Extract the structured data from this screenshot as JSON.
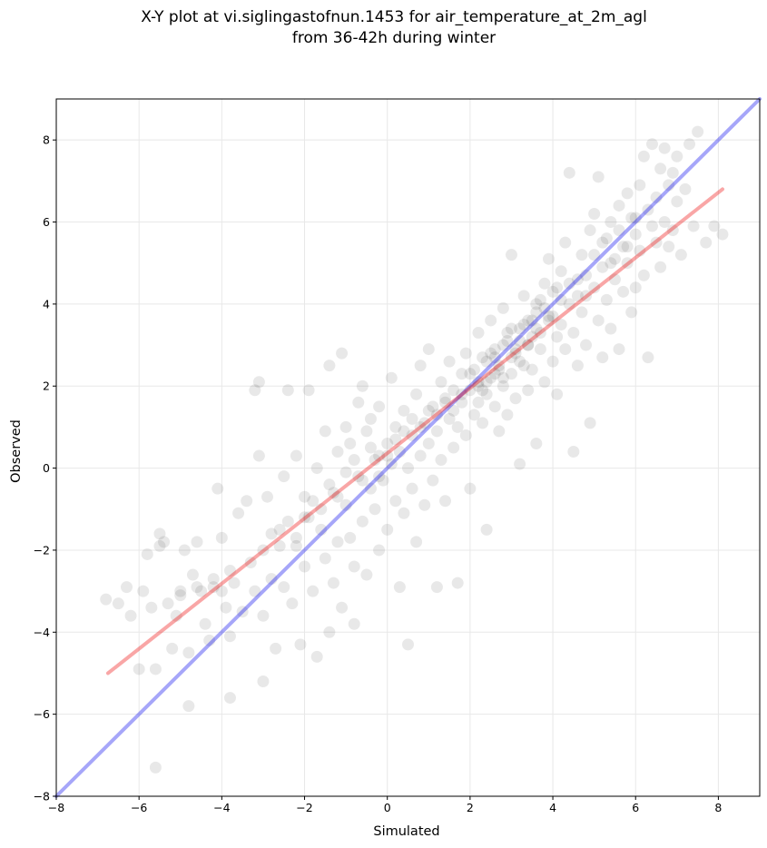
{
  "chart_data": {
    "type": "scatter",
    "title_lines": [
      "X-Y plot at vi.siglingastofnun.1453 for air_temperature_at_2m_agl",
      "from 36-42h during winter"
    ],
    "xlabel": "Simulated",
    "ylabel": "Observed",
    "xlim": [
      -8,
      9
    ],
    "ylim": [
      -8,
      9
    ],
    "xticks": [
      -8,
      -6,
      -4,
      -2,
      0,
      2,
      4,
      6,
      8
    ],
    "yticks": [
      -8,
      -6,
      -4,
      -2,
      0,
      2,
      4,
      6,
      8
    ],
    "grid": true,
    "point_color": "#000000",
    "point_alpha": 0.09,
    "identity_line": {
      "x": [
        -8,
        9
      ],
      "y": [
        -8,
        9
      ],
      "color": "#0000ee",
      "alpha": 0.35
    },
    "fit_line": {
      "x": [
        -6.75,
        8.1
      ],
      "y": [
        -5.0,
        6.8
      ],
      "color": "#ee0000",
      "alpha": 0.35
    },
    "points": [
      [
        -6.8,
        -3.2
      ],
      [
        -6.5,
        -3.3
      ],
      [
        -6.3,
        -2.9
      ],
      [
        -6.2,
        -3.6
      ],
      [
        -6.0,
        -4.9
      ],
      [
        -5.9,
        -3.0
      ],
      [
        -5.8,
        -2.1
      ],
      [
        -5.7,
        -3.4
      ],
      [
        -5.6,
        -7.3
      ],
      [
        -5.6,
        -4.9
      ],
      [
        -5.5,
        -1.9
      ],
      [
        -5.5,
        -1.6
      ],
      [
        -5.4,
        -1.8
      ],
      [
        -5.3,
        -3.3
      ],
      [
        -5.2,
        -4.4
      ],
      [
        -5.1,
        -3.6
      ],
      [
        -5.0,
        -3.1
      ],
      [
        -4.9,
        -2.0
      ],
      [
        -4.8,
        -5.8
      ],
      [
        -4.8,
        -4.5
      ],
      [
        -4.7,
        -2.6
      ],
      [
        -4.6,
        -1.8
      ],
      [
        -4.5,
        -3.0
      ],
      [
        -4.4,
        -3.8
      ],
      [
        -4.3,
        -4.2
      ],
      [
        -4.2,
        -2.9
      ],
      [
        -4.1,
        -0.5
      ],
      [
        -4.0,
        -1.7
      ],
      [
        -3.9,
        -3.4
      ],
      [
        -3.8,
        -4.1
      ],
      [
        -3.8,
        -5.6
      ],
      [
        -3.7,
        -2.8
      ],
      [
        -3.6,
        -1.1
      ],
      [
        -3.5,
        -3.5
      ],
      [
        -3.4,
        -0.8
      ],
      [
        -3.3,
        -2.3
      ],
      [
        -3.2,
        -3.0
      ],
      [
        -3.2,
        1.9
      ],
      [
        -3.1,
        2.1
      ],
      [
        -3.1,
        0.3
      ],
      [
        -3.0,
        -3.6
      ],
      [
        -3.0,
        -5.2
      ],
      [
        -2.9,
        -0.7
      ],
      [
        -2.8,
        -2.7
      ],
      [
        -2.7,
        -4.4
      ],
      [
        -2.6,
        -1.5
      ],
      [
        -2.5,
        -0.2
      ],
      [
        -2.5,
        -2.9
      ],
      [
        -2.4,
        1.9
      ],
      [
        -2.3,
        -3.3
      ],
      [
        -2.2,
        0.3
      ],
      [
        -2.2,
        -1.9
      ],
      [
        -2.1,
        -4.3
      ],
      [
        -2.0,
        -2.4
      ],
      [
        -2.0,
        -0.7
      ],
      [
        -1.9,
        1.9
      ],
      [
        -1.9,
        -1.2
      ],
      [
        -1.8,
        -3.0
      ],
      [
        -1.7,
        0.0
      ],
      [
        -1.7,
        -4.6
      ],
      [
        -1.6,
        -1.5
      ],
      [
        -1.5,
        -2.2
      ],
      [
        -1.5,
        0.9
      ],
      [
        -1.4,
        -4.0
      ],
      [
        -1.4,
        2.5
      ],
      [
        -1.3,
        -0.6
      ],
      [
        -1.3,
        -2.8
      ],
      [
        -1.2,
        0.4
      ],
      [
        -1.2,
        -1.8
      ],
      [
        -1.1,
        -3.4
      ],
      [
        -1.1,
        2.8
      ],
      [
        -1.0,
        1.0
      ],
      [
        -1.0,
        -0.9
      ],
      [
        -0.9,
        -1.7
      ],
      [
        -0.9,
        0.6
      ],
      [
        -0.8,
        -3.8
      ],
      [
        -0.8,
        -2.4
      ],
      [
        -0.7,
        1.6
      ],
      [
        -0.7,
        -0.2
      ],
      [
        -0.6,
        2.0
      ],
      [
        -0.6,
        -1.3
      ],
      [
        -0.5,
        0.9
      ],
      [
        -0.5,
        -2.6
      ],
      [
        -0.4,
        -0.5
      ],
      [
        -0.4,
        1.2
      ],
      [
        -0.3,
        -1.0
      ],
      [
        -0.3,
        0.2
      ],
      [
        -0.2,
        -2.0
      ],
      [
        -0.2,
        1.5
      ],
      [
        -0.1,
        -0.3
      ],
      [
        0.0,
        0.6
      ],
      [
        0.0,
        -1.5
      ],
      [
        0.1,
        0.1
      ],
      [
        0.1,
        2.2
      ],
      [
        0.2,
        -0.8
      ],
      [
        0.2,
        1.0
      ],
      [
        0.3,
        -2.9
      ],
      [
        0.3,
        0.4
      ],
      [
        0.4,
        -1.1
      ],
      [
        0.4,
        1.4
      ],
      [
        0.5,
        -4.3
      ],
      [
        0.5,
        0.0
      ],
      [
        0.6,
        0.8
      ],
      [
        0.6,
        -0.5
      ],
      [
        0.7,
        1.8
      ],
      [
        0.7,
        -1.8
      ],
      [
        0.8,
        0.3
      ],
      [
        0.8,
        2.5
      ],
      [
        0.9,
        -0.9
      ],
      [
        0.9,
        1.1
      ],
      [
        1.0,
        0.6
      ],
      [
        1.0,
        2.9
      ],
      [
        1.1,
        -0.3
      ],
      [
        1.1,
        1.5
      ],
      [
        1.2,
        0.9
      ],
      [
        1.2,
        -2.9
      ],
      [
        1.3,
        2.1
      ],
      [
        1.3,
        0.2
      ],
      [
        1.4,
        1.7
      ],
      [
        1.4,
        -0.8
      ],
      [
        1.5,
        1.2
      ],
      [
        1.5,
        2.6
      ],
      [
        1.6,
        0.5
      ],
      [
        1.6,
        1.9
      ],
      [
        1.7,
        1.0
      ],
      [
        1.7,
        -2.8
      ],
      [
        1.8,
        2.3
      ],
      [
        1.8,
        1.6
      ],
      [
        1.9,
        0.8
      ],
      [
        1.9,
        2.8
      ],
      [
        2.0,
        1.9
      ],
      [
        2.0,
        -0.5
      ],
      [
        2.1,
        2.4
      ],
      [
        2.1,
        1.3
      ],
      [
        2.2,
        3.3
      ],
      [
        2.2,
        2.0
      ],
      [
        2.3,
        1.1
      ],
      [
        2.3,
        2.7
      ],
      [
        2.4,
        -1.5
      ],
      [
        2.4,
        1.8
      ],
      [
        2.5,
        2.2
      ],
      [
        2.5,
        3.6
      ],
      [
        2.6,
        1.5
      ],
      [
        2.6,
        2.9
      ],
      [
        2.7,
        0.9
      ],
      [
        2.7,
        2.5
      ],
      [
        2.8,
        2.0
      ],
      [
        2.8,
        3.9
      ],
      [
        2.9,
        1.3
      ],
      [
        2.9,
        3.1
      ],
      [
        3.0,
        2.3
      ],
      [
        3.0,
        5.2
      ],
      [
        3.1,
        2.8
      ],
      [
        3.1,
        1.7
      ],
      [
        3.2,
        3.4
      ],
      [
        3.2,
        0.1
      ],
      [
        3.3,
        2.5
      ],
      [
        3.3,
        4.2
      ],
      [
        3.4,
        3.0
      ],
      [
        3.4,
        1.9
      ],
      [
        3.5,
        3.6
      ],
      [
        3.5,
        2.4
      ],
      [
        3.6,
        4.0
      ],
      [
        3.6,
        0.6
      ],
      [
        3.7,
        2.9
      ],
      [
        3.7,
        3.3
      ],
      [
        3.8,
        4.5
      ],
      [
        3.8,
        2.1
      ],
      [
        3.9,
        3.7
      ],
      [
        3.9,
        5.1
      ],
      [
        4.0,
        2.6
      ],
      [
        4.0,
        4.3
      ],
      [
        4.1,
        3.2
      ],
      [
        4.1,
        1.8
      ],
      [
        4.2,
        4.8
      ],
      [
        4.2,
        3.5
      ],
      [
        4.3,
        2.9
      ],
      [
        4.3,
        5.5
      ],
      [
        4.4,
        4.0
      ],
      [
        4.4,
        7.2
      ],
      [
        4.5,
        3.3
      ],
      [
        4.5,
        0.4
      ],
      [
        4.6,
        4.6
      ],
      [
        4.6,
        2.5
      ],
      [
        4.7,
        3.8
      ],
      [
        4.7,
        5.2
      ],
      [
        4.8,
        4.2
      ],
      [
        4.8,
        3.0
      ],
      [
        4.9,
        5.8
      ],
      [
        4.9,
        1.1
      ],
      [
        5.0,
        4.4
      ],
      [
        5.0,
        6.2
      ],
      [
        5.1,
        3.6
      ],
      [
        5.1,
        7.1
      ],
      [
        5.2,
        4.9
      ],
      [
        5.2,
        2.7
      ],
      [
        5.3,
        5.6
      ],
      [
        5.3,
        4.1
      ],
      [
        5.4,
        6.0
      ],
      [
        5.4,
        3.4
      ],
      [
        5.5,
        5.1
      ],
      [
        5.5,
        4.6
      ],
      [
        5.6,
        6.4
      ],
      [
        5.6,
        2.9
      ],
      [
        5.7,
        5.4
      ],
      [
        5.7,
        4.3
      ],
      [
        5.8,
        6.7
      ],
      [
        5.8,
        5.0
      ],
      [
        5.9,
        3.8
      ],
      [
        5.9,
        6.1
      ],
      [
        6.0,
        5.7
      ],
      [
        6.0,
        4.4
      ],
      [
        6.1,
        6.9
      ],
      [
        6.1,
        5.3
      ],
      [
        6.2,
        7.6
      ],
      [
        6.2,
        4.7
      ],
      [
        6.3,
        6.3
      ],
      [
        6.3,
        2.7
      ],
      [
        6.4,
        5.9
      ],
      [
        6.4,
        7.9
      ],
      [
        6.5,
        5.5
      ],
      [
        6.5,
        6.6
      ],
      [
        6.6,
        7.3
      ],
      [
        6.6,
        4.9
      ],
      [
        6.7,
        6.0
      ],
      [
        6.7,
        7.8
      ],
      [
        6.8,
        5.4
      ],
      [
        6.8,
        6.9
      ],
      [
        6.9,
        7.2
      ],
      [
        6.9,
        5.8
      ],
      [
        7.0,
        6.5
      ],
      [
        7.0,
        7.6
      ],
      [
        7.1,
        5.2
      ],
      [
        7.2,
        6.8
      ],
      [
        7.3,
        7.9
      ],
      [
        7.4,
        5.9
      ],
      [
        7.5,
        8.2
      ],
      [
        7.7,
        5.5
      ],
      [
        7.9,
        5.9
      ],
      [
        8.1,
        5.7
      ],
      [
        2.2,
        2.1
      ],
      [
        2.4,
        2.6
      ],
      [
        2.6,
        2.3
      ],
      [
        2.8,
        3.0
      ],
      [
        3.0,
        2.7
      ],
      [
        3.2,
        3.1
      ],
      [
        3.4,
        3.6
      ],
      [
        3.6,
        3.4
      ],
      [
        3.8,
        3.9
      ],
      [
        4.0,
        3.7
      ],
      [
        2.3,
        1.9
      ],
      [
        2.5,
        2.8
      ],
      [
        2.7,
        2.4
      ],
      [
        2.9,
        3.3
      ],
      [
        3.1,
        2.9
      ],
      [
        3.3,
        3.5
      ],
      [
        3.5,
        3.2
      ],
      [
        3.7,
        4.1
      ],
      [
        3.9,
        3.6
      ],
      [
        4.1,
        4.4
      ],
      [
        1.8,
        1.8
      ],
      [
        2.0,
        2.3
      ],
      [
        2.2,
        1.6
      ],
      [
        2.4,
        2.1
      ],
      [
        2.6,
        2.7
      ],
      [
        2.8,
        2.2
      ],
      [
        3.0,
        3.4
      ],
      [
        3.2,
        2.6
      ],
      [
        3.4,
        3.0
      ],
      [
        3.6,
        3.8
      ],
      [
        4.2,
        4.1
      ],
      [
        4.4,
        4.5
      ],
      [
        4.6,
        4.2
      ],
      [
        4.8,
        4.7
      ],
      [
        5.0,
        5.2
      ],
      [
        5.2,
        5.5
      ],
      [
        5.4,
        5.0
      ],
      [
        5.6,
        5.8
      ],
      [
        5.8,
        5.4
      ],
      [
        6.0,
        6.1
      ],
      [
        -2.0,
        -1.2
      ],
      [
        -1.8,
        -0.8
      ],
      [
        -1.6,
        -1.0
      ],
      [
        -1.4,
        -0.4
      ],
      [
        -1.2,
        -0.7
      ],
      [
        -1.0,
        -0.1
      ],
      [
        -0.8,
        0.2
      ],
      [
        -0.6,
        -0.3
      ],
      [
        -0.4,
        0.5
      ],
      [
        -0.2,
        0.3
      ],
      [
        -3.0,
        -2.0
      ],
      [
        -2.8,
        -1.6
      ],
      [
        -2.6,
        -1.9
      ],
      [
        -2.4,
        -1.3
      ],
      [
        -2.2,
        -1.7
      ],
      [
        -4.0,
        -3.0
      ],
      [
        -4.2,
        -2.7
      ],
      [
        -3.8,
        -2.5
      ],
      [
        -5.0,
        -3.0
      ],
      [
        -4.6,
        -2.9
      ],
      [
        0.2,
        0.7
      ],
      [
        0.4,
        0.9
      ],
      [
        0.6,
        1.2
      ],
      [
        0.8,
        1.0
      ],
      [
        1.0,
        1.4
      ],
      [
        1.2,
        1.3
      ],
      [
        1.4,
        1.6
      ],
      [
        1.6,
        1.4
      ],
      [
        0.0,
        0.3
      ],
      [
        -0.2,
        -0.2
      ]
    ]
  }
}
